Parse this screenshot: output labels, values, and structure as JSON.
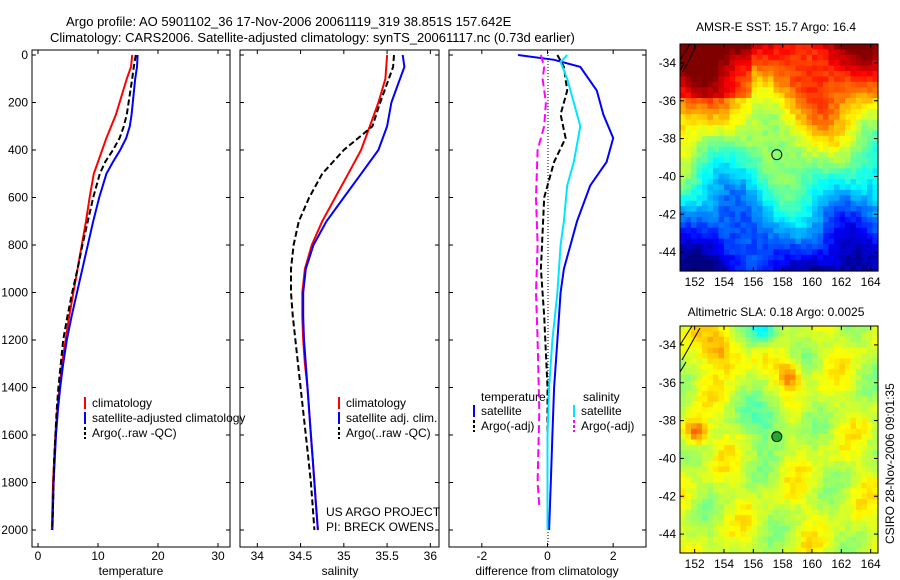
{
  "header": {
    "line1": "Argo profile: AO 5901102_36 17-Nov-2006 20061119_319 38.851S 157.642E",
    "line2": "Climatology: CARS2006. Satellite-adjusted climatology: synTS_20061117.nc (0.73d earlier)"
  },
  "footer": {
    "project_line1": "US ARGO PROJECT",
    "project_line2": "PI: BRECK OWENS",
    "stamp": "CSIRO 28-Nov-2006 09:01:35"
  },
  "colors": {
    "climatology": "#ff0000",
    "satellite_adjusted": "#0000ff",
    "argo": "#000000",
    "salinity_satellite": "#00e5ff",
    "salinity_argo_adj": "#ff00ff"
  },
  "chart_data": [
    {
      "id": "temperature",
      "type": "line",
      "xlabel": "temperature",
      "xlim": [
        -1,
        32
      ],
      "xticks": [
        0,
        10,
        20,
        30
      ],
      "ylim": [
        2050,
        0
      ],
      "yticks": [
        0,
        200,
        400,
        600,
        800,
        1000,
        1200,
        1400,
        1600,
        1800,
        2000
      ],
      "legend": [
        "climatology",
        "satellite-adjusted climatology",
        "Argo(..raw -QC)"
      ],
      "series": [
        {
          "name": "climatology",
          "color": "#ff0000",
          "dash": "",
          "points": [
            [
              15.7,
              0
            ],
            [
              15.5,
              50
            ],
            [
              14.8,
              100
            ],
            [
              14.2,
              150
            ],
            [
              13.6,
              200
            ],
            [
              13.0,
              250
            ],
            [
              12.2,
              300
            ],
            [
              11.4,
              350
            ],
            [
              10.7,
              400
            ],
            [
              10.0,
              450
            ],
            [
              9.3,
              500
            ],
            [
              8.6,
              600
            ],
            [
              8.0,
              700
            ],
            [
              7.3,
              800
            ],
            [
              6.6,
              900
            ],
            [
              5.9,
              1000
            ],
            [
              5.2,
              1100
            ],
            [
              4.6,
              1200
            ],
            [
              4.0,
              1300
            ],
            [
              3.6,
              1400
            ],
            [
              3.2,
              1500
            ],
            [
              2.9,
              1600
            ],
            [
              2.7,
              1700
            ],
            [
              2.5,
              1800
            ],
            [
              2.4,
              1900
            ],
            [
              2.3,
              2000
            ]
          ]
        },
        {
          "name": "satellite-adjusted climatology",
          "color": "#0000ff",
          "dash": "",
          "points": [
            [
              16.6,
              0
            ],
            [
              16.5,
              50
            ],
            [
              16.2,
              100
            ],
            [
              16.0,
              150
            ],
            [
              15.8,
              200
            ],
            [
              15.6,
              250
            ],
            [
              15.3,
              300
            ],
            [
              14.7,
              350
            ],
            [
              13.7,
              400
            ],
            [
              12.5,
              450
            ],
            [
              11.4,
              500
            ],
            [
              10.2,
              600
            ],
            [
              9.2,
              700
            ],
            [
              8.3,
              800
            ],
            [
              7.4,
              900
            ],
            [
              6.5,
              1000
            ],
            [
              5.6,
              1100
            ],
            [
              4.8,
              1200
            ],
            [
              4.2,
              1300
            ],
            [
              3.7,
              1400
            ],
            [
              3.3,
              1500
            ],
            [
              3.0,
              1600
            ],
            [
              2.8,
              1700
            ],
            [
              2.6,
              1800
            ],
            [
              2.5,
              1900
            ],
            [
              2.4,
              2000
            ]
          ]
        },
        {
          "name": "Argo(..raw -QC)",
          "color": "#000000",
          "dash": "6,3",
          "points": [
            [
              16.3,
              0
            ],
            [
              16.1,
              30
            ],
            [
              15.9,
              60
            ],
            [
              15.7,
              100
            ],
            [
              15.4,
              150
            ],
            [
              15.1,
              200
            ],
            [
              14.8,
              250
            ],
            [
              14.3,
              300
            ],
            [
              13.6,
              350
            ],
            [
              12.5,
              400
            ],
            [
              11.2,
              450
            ],
            [
              10.3,
              500
            ],
            [
              9.2,
              600
            ],
            [
              8.3,
              700
            ],
            [
              7.4,
              800
            ],
            [
              6.6,
              900
            ],
            [
              5.7,
              1000
            ],
            [
              4.9,
              1100
            ],
            [
              4.2,
              1200
            ],
            [
              3.8,
              1300
            ],
            [
              3.4,
              1400
            ],
            [
              3.1,
              1500
            ],
            [
              2.9,
              1600
            ],
            [
              2.7,
              1700
            ],
            [
              2.6,
              1800
            ],
            [
              2.5,
              1900
            ],
            [
              2.4,
              2000
            ]
          ]
        }
      ]
    },
    {
      "id": "salinity",
      "type": "line",
      "xlabel": "salinity",
      "xlim": [
        33.8,
        36.1
      ],
      "xticks": [
        34,
        34.5,
        35,
        35.5,
        36
      ],
      "xticklabels": [
        "34",
        "34.5",
        "35",
        "35.5",
        "36"
      ],
      "ylim": [
        2050,
        0
      ],
      "legend": [
        "climatology",
        "satellite adj. clim.",
        "Argo(..raw -QC)"
      ],
      "series": [
        {
          "name": "climatology",
          "color": "#ff0000",
          "dash": "",
          "points": [
            [
              35.5,
              0
            ],
            [
              35.48,
              100
            ],
            [
              35.4,
              200
            ],
            [
              35.3,
              300
            ],
            [
              35.2,
              400
            ],
            [
              35.05,
              500
            ],
            [
              34.9,
              600
            ],
            [
              34.75,
              700
            ],
            [
              34.63,
              800
            ],
            [
              34.55,
              900
            ],
            [
              34.52,
              1000
            ],
            [
              34.52,
              1100
            ],
            [
              34.53,
              1200
            ],
            [
              34.55,
              1300
            ],
            [
              34.58,
              1400
            ],
            [
              34.6,
              1500
            ],
            [
              34.62,
              1600
            ],
            [
              34.64,
              1700
            ],
            [
              34.66,
              1800
            ],
            [
              34.68,
              1900
            ],
            [
              34.7,
              2000
            ]
          ]
        },
        {
          "name": "satellite adj. clim.",
          "color": "#0000ff",
          "dash": "",
          "points": [
            [
              35.68,
              0
            ],
            [
              35.7,
              50
            ],
            [
              35.6,
              150
            ],
            [
              35.55,
              200
            ],
            [
              35.5,
              300
            ],
            [
              35.4,
              400
            ],
            [
              35.2,
              500
            ],
            [
              35.0,
              600
            ],
            [
              34.8,
              700
            ],
            [
              34.65,
              800
            ],
            [
              34.56,
              900
            ],
            [
              34.53,
              1000
            ],
            [
              34.53,
              1100
            ],
            [
              34.54,
              1200
            ],
            [
              34.56,
              1300
            ],
            [
              34.58,
              1400
            ],
            [
              34.6,
              1500
            ],
            [
              34.62,
              1600
            ],
            [
              34.64,
              1700
            ],
            [
              34.66,
              1800
            ],
            [
              34.68,
              1900
            ],
            [
              34.7,
              2000
            ]
          ]
        },
        {
          "name": "Argo(..raw -QC)",
          "color": "#000000",
          "dash": "6,3",
          "points": [
            [
              35.58,
              0
            ],
            [
              35.57,
              50
            ],
            [
              35.52,
              100
            ],
            [
              35.47,
              150
            ],
            [
              35.42,
              200
            ],
            [
              35.33,
              300
            ],
            [
              35.0,
              400
            ],
            [
              34.75,
              500
            ],
            [
              34.6,
              600
            ],
            [
              34.48,
              700
            ],
            [
              34.42,
              800
            ],
            [
              34.39,
              900
            ],
            [
              34.39,
              1000
            ],
            [
              34.41,
              1100
            ],
            [
              34.44,
              1200
            ],
            [
              34.47,
              1300
            ],
            [
              34.5,
              1400
            ],
            [
              34.53,
              1500
            ],
            [
              34.56,
              1600
            ],
            [
              34.59,
              1700
            ],
            [
              34.62,
              1800
            ],
            [
              34.64,
              1900
            ],
            [
              34.66,
              2000
            ]
          ]
        }
      ]
    },
    {
      "id": "difference",
      "type": "line",
      "xlabel": "difference from climatology",
      "xlim": [
        -3,
        3
      ],
      "xticks": [
        -2,
        0,
        2
      ],
      "ylim": [
        2050,
        0
      ],
      "legend_temperature_title": "temperature",
      "legend_salinity_title": "salinity",
      "legend": [
        "satellite",
        "Argo(-adj)",
        "satellite",
        "Argo(-adj)"
      ],
      "series": [
        {
          "name": "temperature satellite",
          "color": "#0000ff",
          "dash": "",
          "points": [
            [
              -0.9,
              0
            ],
            [
              0.2,
              20
            ],
            [
              1.0,
              50
            ],
            [
              1.5,
              150
            ],
            [
              1.7,
              250
            ],
            [
              2.0,
              350
            ],
            [
              1.8,
              450
            ],
            [
              1.3,
              550
            ],
            [
              0.9,
              700
            ],
            [
              0.7,
              800
            ],
            [
              0.5,
              900
            ],
            [
              0.4,
              1000
            ],
            [
              0.3,
              1200
            ],
            [
              0.2,
              1400
            ],
            [
              0.15,
              1600
            ],
            [
              0.1,
              1800
            ],
            [
              0.05,
              2000
            ]
          ]
        },
        {
          "name": "temperature Argo(-adj)",
          "color": "#000000",
          "dash": "6,3",
          "points": [
            [
              0.3,
              0
            ],
            [
              0.5,
              50
            ],
            [
              0.6,
              150
            ],
            [
              0.4,
              250
            ],
            [
              0.55,
              350
            ],
            [
              0.2,
              450
            ],
            [
              -0.1,
              600
            ],
            [
              -0.2,
              900
            ],
            [
              -0.1,
              1100
            ],
            [
              0.0,
              1400
            ],
            [
              0.0,
              2000
            ]
          ]
        },
        {
          "name": "salinity satellite",
          "color": "#00e5ff",
          "dash": "",
          "points": [
            [
              0.6,
              0
            ],
            [
              0.4,
              30
            ],
            [
              0.6,
              100
            ],
            [
              0.8,
              200
            ],
            [
              1.0,
              300
            ],
            [
              0.8,
              450
            ],
            [
              0.6,
              550
            ],
            [
              0.5,
              700
            ],
            [
              0.4,
              800
            ],
            [
              0.35,
              900
            ],
            [
              0.3,
              1000
            ],
            [
              0.15,
              1200
            ],
            [
              0.05,
              1400
            ],
            [
              0.0,
              1600
            ],
            [
              0.0,
              2000
            ]
          ]
        },
        {
          "name": "salinity Argo(-adj)",
          "color": "#ff00ff",
          "dash": "8,4",
          "points": [
            [
              -0.2,
              0
            ],
            [
              -0.1,
              50
            ],
            [
              -0.15,
              100
            ],
            [
              -0.05,
              200
            ],
            [
              -0.1,
              300
            ],
            [
              -0.3,
              400
            ],
            [
              -0.35,
              600
            ],
            [
              -0.3,
              800
            ],
            [
              -0.35,
              1000
            ],
            [
              -0.3,
              1200
            ],
            [
              -0.25,
              1500
            ],
            [
              -0.3,
              1800
            ],
            [
              -0.25,
              1900
            ]
          ]
        }
      ]
    },
    {
      "id": "sst_map",
      "type": "heatmap",
      "title": "AMSR-E SST: 15.7  Argo: 16.4",
      "xticks": [
        152,
        154,
        156,
        158,
        160,
        162,
        164
      ],
      "yticks": [
        -34,
        -36,
        -38,
        -40,
        -42,
        -44
      ],
      "xlim": [
        151,
        164.5
      ],
      "ylim": [
        -45,
        -33
      ],
      "marker": [
        157.6,
        -38.85
      ]
    },
    {
      "id": "sla_map",
      "type": "heatmap",
      "title": "Altimetric SLA: 0.18  Argo: 0.0025",
      "xticks": [
        152,
        154,
        156,
        158,
        160,
        162,
        164
      ],
      "yticks": [
        -34,
        -36,
        -38,
        -40,
        -42,
        -44
      ],
      "xlim": [
        151,
        164.5
      ],
      "ylim": [
        -45,
        -33
      ],
      "marker": [
        157.6,
        -38.85
      ]
    }
  ]
}
